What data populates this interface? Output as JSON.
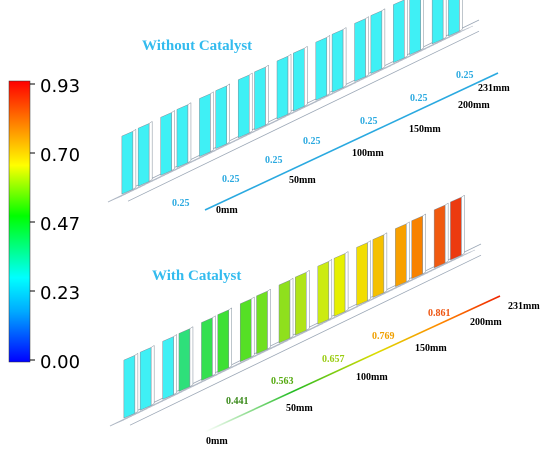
{
  "colorbar": {
    "ticks": [
      "0.93",
      "0.70",
      "0.47",
      "0.23",
      "0.00"
    ],
    "colors": [
      "#0000ff",
      "#00aaff",
      "#00ffff",
      "#00ff00",
      "#ffff00",
      "#ff8000",
      "#ff0000"
    ]
  },
  "top_panel": {
    "title": "Without Catalyst",
    "title_color": "#33bbee",
    "distance_labels": [
      "0mm",
      "50mm",
      "100mm",
      "150mm",
      "200mm",
      "231mm"
    ],
    "axis_color": "#2aa9e0",
    "values": [
      {
        "text": "0.25",
        "color": "#2aa9e0"
      },
      {
        "text": "0.25",
        "color": "#2aa9e0"
      },
      {
        "text": "0.25",
        "color": "#2aa9e0"
      },
      {
        "text": "0.25",
        "color": "#2aa9e0"
      },
      {
        "text": "0.25",
        "color": "#2aa9e0"
      },
      {
        "text": "0.25",
        "color": "#2aa9e0"
      },
      {
        "text": "0.25",
        "color": "#2aa9e0"
      }
    ],
    "fin_colors": [
      "#3ff0f5",
      "#3ff0f5",
      "#3ff0f5",
      "#3ff0f5",
      "#3ff0f5",
      "#3ff0f5",
      "#3ff0f5",
      "#3ff0f5",
      "#3ff0f5",
      "#3ff0f5",
      "#3ff0f5",
      "#3ff0f5",
      "#3ff0f5",
      "#3ff0f5",
      "#3ff0f5",
      "#3ff0f5",
      "#3ff0f5",
      "#3ff0f5"
    ]
  },
  "bottom_panel": {
    "title": "With Catalyst",
    "title_color": "#33bbee",
    "distance_labels": [
      "0mm",
      "50mm",
      "100mm",
      "150mm",
      "200mm",
      "231mm"
    ],
    "axis_gradient": [
      "#ffffff",
      "#22bb22",
      "#dddd00",
      "#ff8800",
      "#ee2200"
    ],
    "values": [
      {
        "text": "0.441",
        "color": "#3a8a1a"
      },
      {
        "text": "0.563",
        "color": "#55aa10"
      },
      {
        "text": "0.657",
        "color": "#99cc10"
      },
      {
        "text": "0.769",
        "color": "#f0a000"
      },
      {
        "text": "0.861",
        "color": "#ee5511"
      }
    ],
    "fin_colors": [
      "#3ff0f5",
      "#3ff0f5",
      "#3ff0f5",
      "#2ee07a",
      "#33e050",
      "#3ee035",
      "#55e025",
      "#70e020",
      "#8fe01d",
      "#b0e418",
      "#cceb12",
      "#e6f000",
      "#f2dd00",
      "#f5c000",
      "#f8a000",
      "#f88200",
      "#f05a10",
      "#ec3a10"
    ]
  }
}
